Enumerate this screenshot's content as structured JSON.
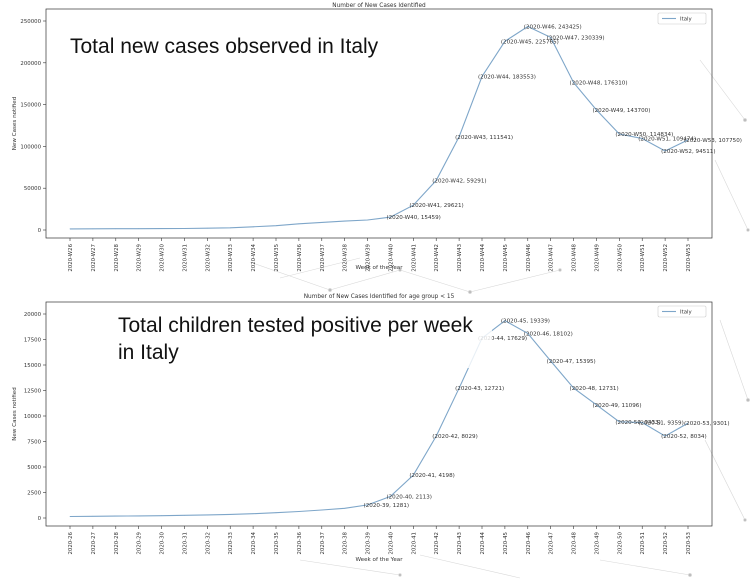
{
  "charts": [
    {
      "caption": "Total new cases observed in Italy",
      "chart_data": {
        "type": "line",
        "title": "Number of New Cases Identified",
        "xlabel": "Week of the Year",
        "ylabel": "New Cases notified",
        "ylim": [
          0,
          250000
        ],
        "yticks": [
          0,
          50000,
          100000,
          150000,
          200000,
          250000
        ],
        "grid": false,
        "legend": "top-right",
        "line_color": "#7ea6c9",
        "categories": [
          "2020-W26",
          "2020-W27",
          "2020-W28",
          "2020-W29",
          "2020-W30",
          "2020-W31",
          "2020-W32",
          "2020-W33",
          "2020-W34",
          "2020-W35",
          "2020-W36",
          "2020-W37",
          "2020-W38",
          "2020-W39",
          "2020-W40",
          "2020-W41",
          "2020-W42",
          "2020-W43",
          "2020-W44",
          "2020-W45",
          "2020-W46",
          "2020-W47",
          "2020-W48",
          "2020-W49",
          "2020-W50",
          "2020-W51",
          "2020-W52",
          "2020-W53"
        ],
        "series": [
          {
            "name": "Italy",
            "values": [
              1300,
              1400,
              1500,
              1600,
              1700,
              1800,
              2100,
              2600,
              3800,
              5100,
              7400,
              9100,
              10700,
              12000,
              15459,
              29621,
              59291,
              111541,
              183553,
              225765,
              243425,
              230339,
              176310,
              143700,
              114834,
              109474,
              94511,
              107750
            ]
          }
        ],
        "annotations": [
          {
            "index": 14,
            "text": "(2020-W40, 15459)"
          },
          {
            "index": 15,
            "text": "(2020-W41, 29621)"
          },
          {
            "index": 16,
            "text": "(2020-W42, 59291)"
          },
          {
            "index": 17,
            "text": "(2020-W43, 111541)"
          },
          {
            "index": 18,
            "text": "(2020-W44, 183553)"
          },
          {
            "index": 19,
            "text": "(2020-W45, 225765)"
          },
          {
            "index": 20,
            "text": "(2020-W46, 243425)"
          },
          {
            "index": 21,
            "text": "(2020-W47, 230339)"
          },
          {
            "index": 22,
            "text": "(2020-W48, 176310)"
          },
          {
            "index": 23,
            "text": "(2020-W49, 143700)"
          },
          {
            "index": 24,
            "text": "(2020-W50, 114834)"
          },
          {
            "index": 25,
            "text": "(2020-W51, 109474)"
          },
          {
            "index": 26,
            "text": "(2020-W52, 94511)"
          },
          {
            "index": 27,
            "text": "(2020-W53, 107750)"
          }
        ]
      }
    },
    {
      "caption": "Total children tested positive per week in Italy",
      "chart_data": {
        "type": "line",
        "title": "Number of New Cases Identified for age group < 15",
        "xlabel": "Week of the Year",
        "ylabel": "New Cases notified",
        "ylim": [
          0,
          20000
        ],
        "yticks": [
          0,
          2500,
          5000,
          7500,
          10000,
          12500,
          15000,
          17500,
          20000
        ],
        "grid": false,
        "legend": "top-right",
        "line_color": "#7ea6c9",
        "categories": [
          "2020-26",
          "2020-27",
          "2020-28",
          "2020-29",
          "2020-30",
          "2020-31",
          "2020-32",
          "2020-33",
          "2020-34",
          "2020-35",
          "2020-36",
          "2020-37",
          "2020-38",
          "2020-39",
          "2020-40",
          "2020-41",
          "2020-42",
          "2020-43",
          "2020-44",
          "2020-45",
          "2020-46",
          "2020-47",
          "2020-48",
          "2020-49",
          "2020-50",
          "2020-51",
          "2020-52",
          "2020-53"
        ],
        "series": [
          {
            "name": "Italy",
            "values": [
              150,
              170,
              190,
              210,
              230,
              260,
              300,
              350,
              420,
              520,
              640,
              780,
              950,
              1281,
              2113,
              4198,
              8029,
              12721,
              17629,
              19339,
              18102,
              15395,
              12731,
              11096,
              9433,
              9359,
              8034,
              9301
            ]
          }
        ],
        "annotations": [
          {
            "index": 13,
            "text": "(2020-39, 1281)"
          },
          {
            "index": 14,
            "text": "(2020-40, 2113)"
          },
          {
            "index": 15,
            "text": "(2020-41, 4198)"
          },
          {
            "index": 16,
            "text": "(2020-42, 8029)"
          },
          {
            "index": 17,
            "text": "(2020-43, 12721)"
          },
          {
            "index": 18,
            "text": "(2020-44, 17629)"
          },
          {
            "index": 19,
            "text": "(2020-45, 19339)"
          },
          {
            "index": 20,
            "text": "(2020-46, 18102)"
          },
          {
            "index": 21,
            "text": "(2020-47, 15395)"
          },
          {
            "index": 22,
            "text": "(2020-48, 12731)"
          },
          {
            "index": 23,
            "text": "(2020-49, 11096)"
          },
          {
            "index": 24,
            "text": "(2020-50, 9433)"
          },
          {
            "index": 25,
            "text": "(2020-51, 9359)"
          },
          {
            "index": 26,
            "text": "(2020-52, 8034)"
          },
          {
            "index": 27,
            "text": "(2020-53, 9301)"
          }
        ]
      }
    }
  ]
}
